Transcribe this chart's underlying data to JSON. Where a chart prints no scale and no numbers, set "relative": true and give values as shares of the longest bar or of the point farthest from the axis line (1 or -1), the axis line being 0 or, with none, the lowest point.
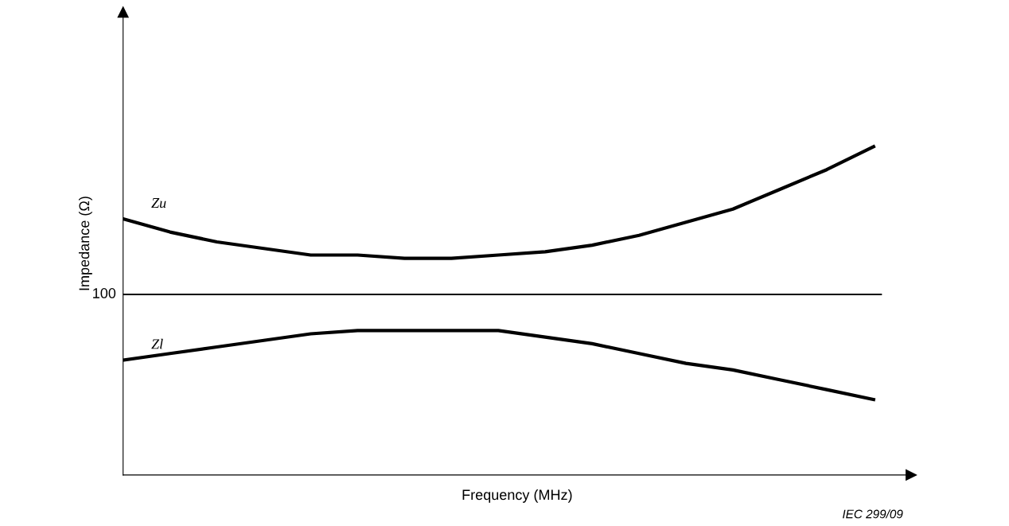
{
  "chart_data": {
    "type": "line",
    "relative": true,
    "xlabel": "Frequency (MHz)",
    "ylabel": "Impedance (Ω)",
    "categories": [
      null,
      null,
      null,
      null,
      null,
      null,
      null,
      null,
      null,
      null,
      null,
      null,
      null,
      null,
      null,
      null,
      null
    ],
    "series": [
      {
        "name": "Zu",
        "color": "#000000",
        "values": [
          0.78,
          0.74,
          0.71,
          0.69,
          0.67,
          0.67,
          0.66,
          0.66,
          0.67,
          0.68,
          0.7,
          0.73,
          0.77,
          0.81,
          0.87,
          0.93,
          1.0
        ]
      },
      {
        "name": "Zl",
        "color": "#000000",
        "values": [
          0.35,
          0.37,
          0.39,
          0.41,
          0.43,
          0.44,
          0.44,
          0.44,
          0.44,
          0.42,
          0.4,
          0.37,
          0.34,
          0.32,
          0.29,
          0.26,
          0.23
        ]
      }
    ],
    "ref_lines": [
      {
        "axis": "y",
        "value": 0.55,
        "color": "#000000",
        "line_style": "solid"
      }
    ],
    "annotations": [
      "100",
      "IEC 299/09"
    ],
    "grid": false,
    "legend": false,
    "marker": "none",
    "line_style": "solid"
  }
}
